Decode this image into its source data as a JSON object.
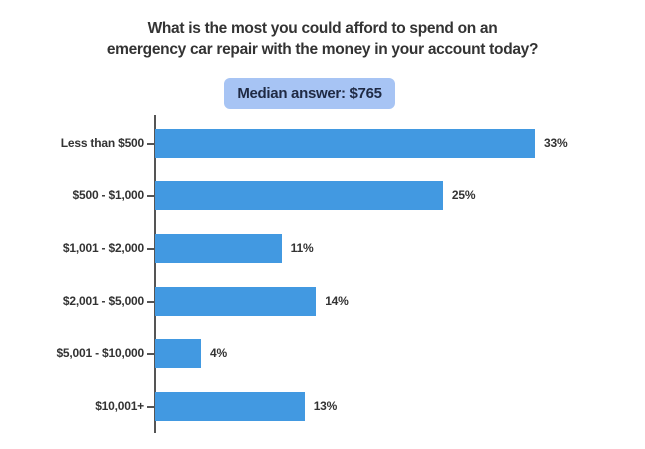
{
  "chart_data": {
    "type": "bar",
    "orientation": "horizontal",
    "title": "What is the most you could afford to spend on an emergency car repair with the money in your account today?",
    "title_lines": [
      "What is the most you could afford to spend on an",
      "emergency car repair with the money in your account today?"
    ],
    "annotation": "Median answer: $765",
    "categories": [
      "Less than $500",
      "$500 - $1,000",
      "$1,001 - $2,000",
      "$2,001 - $5,000",
      "$5,001 - $10,000",
      "$10,001+"
    ],
    "values": [
      33,
      25,
      11,
      14,
      4,
      13
    ],
    "value_labels": [
      "33%",
      "25%",
      "11%",
      "14%",
      "4%",
      "13%"
    ],
    "unit": "%",
    "xlabel": "",
    "ylabel": "",
    "xlim": [
      0,
      33
    ],
    "grid": false,
    "legend": null,
    "bar_color": "#4299e1",
    "annotation_bg": "#a7c4f4",
    "annotation_color": "#1f2a44"
  }
}
